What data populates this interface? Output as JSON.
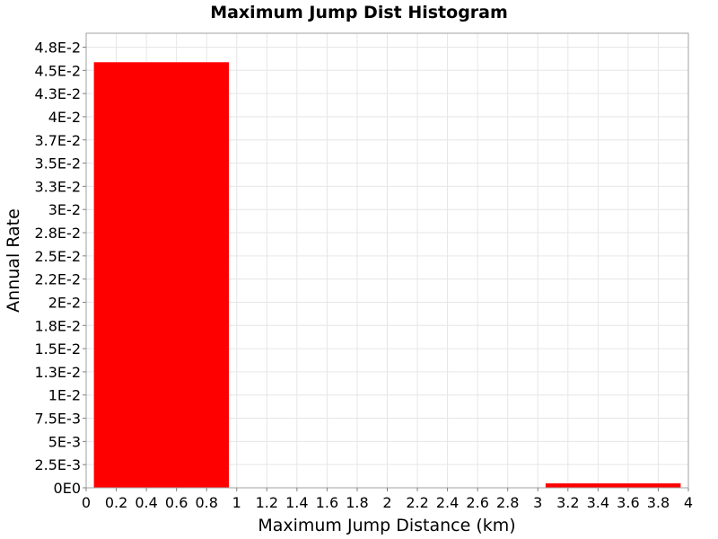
{
  "chart_data": {
    "type": "bar",
    "title": "Maximum Jump Dist Histogram",
    "xlabel": "Maximum Jump Distance (km)",
    "ylabel": "Annual Rate",
    "xlim": [
      0,
      4
    ],
    "ylim": [
      0,
      0.049
    ],
    "grid": true,
    "bar_color": "#ff0000",
    "bins": [
      {
        "x0": 0.05,
        "x1": 0.95,
        "value": 0.0459
      },
      {
        "x0": 3.05,
        "x1": 3.95,
        "value": 0.0005
      }
    ],
    "x_ticks": [
      {
        "v": 0,
        "label": "0"
      },
      {
        "v": 0.2,
        "label": "0.2"
      },
      {
        "v": 0.4,
        "label": "0.4"
      },
      {
        "v": 0.6,
        "label": "0.6"
      },
      {
        "v": 0.8,
        "label": "0.8"
      },
      {
        "v": 1.0,
        "label": "1"
      },
      {
        "v": 1.2,
        "label": "1.2"
      },
      {
        "v": 1.4,
        "label": "1.4"
      },
      {
        "v": 1.6,
        "label": "1.6"
      },
      {
        "v": 1.8,
        "label": "1.8"
      },
      {
        "v": 2.0,
        "label": "2"
      },
      {
        "v": 2.2,
        "label": "2.2"
      },
      {
        "v": 2.4,
        "label": "2.4"
      },
      {
        "v": 2.6,
        "label": "2.6"
      },
      {
        "v": 2.8,
        "label": "2.8"
      },
      {
        "v": 3.0,
        "label": "3"
      },
      {
        "v": 3.2,
        "label": "3.2"
      },
      {
        "v": 3.4,
        "label": "3.4"
      },
      {
        "v": 3.6,
        "label": "3.6"
      },
      {
        "v": 3.8,
        "label": "3.8"
      },
      {
        "v": 4.0,
        "label": "4"
      }
    ],
    "y_ticks": [
      {
        "v": 0,
        "label": "0E0"
      },
      {
        "v": 0.0025,
        "label": "2.5E-3"
      },
      {
        "v": 0.005,
        "label": "5E-3"
      },
      {
        "v": 0.0075,
        "label": "7.5E-3"
      },
      {
        "v": 0.01,
        "label": "1E-2"
      },
      {
        "v": 0.0125,
        "label": "1.3E-2"
      },
      {
        "v": 0.015,
        "label": "1.5E-2"
      },
      {
        "v": 0.0175,
        "label": "1.8E-2"
      },
      {
        "v": 0.02,
        "label": "2E-2"
      },
      {
        "v": 0.0225,
        "label": "2.2E-2"
      },
      {
        "v": 0.025,
        "label": "2.5E-2"
      },
      {
        "v": 0.0275,
        "label": "2.8E-2"
      },
      {
        "v": 0.03,
        "label": "3E-2"
      },
      {
        "v": 0.0325,
        "label": "3.3E-2"
      },
      {
        "v": 0.035,
        "label": "3.5E-2"
      },
      {
        "v": 0.0375,
        "label": "3.7E-2"
      },
      {
        "v": 0.04,
        "label": "4E-2"
      },
      {
        "v": 0.0425,
        "label": "4.3E-2"
      },
      {
        "v": 0.045,
        "label": "4.5E-2"
      },
      {
        "v": 0.0475,
        "label": "4.8E-2"
      }
    ]
  }
}
